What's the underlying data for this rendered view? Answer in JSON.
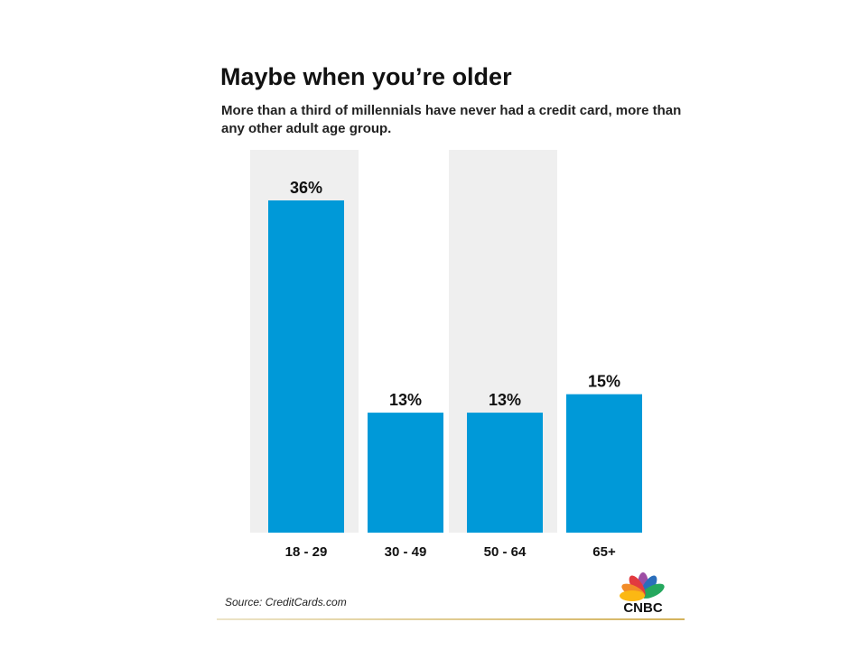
{
  "header": {
    "title": "Maybe when you’re older",
    "subtitle": "More than a third of millennials have never had a credit card, more than any other adult age group."
  },
  "footer": {
    "source": "Source: CreditCards.com",
    "logo_text": "CNBC"
  },
  "colors": {
    "bar": "#0099d8",
    "band": "#efefef",
    "text": "#111111"
  },
  "chart_data": {
    "type": "bar",
    "categories": [
      "18 - 29",
      "30 - 49",
      "50 - 64",
      "65+"
    ],
    "values": [
      36,
      13,
      13,
      15
    ],
    "value_labels": [
      "36%",
      "13%",
      "13%",
      "15%"
    ],
    "unit": "%",
    "title": "Maybe when you’re older",
    "subtitle": "More than a third of millennials have never had a credit card, more than any other adult age group.",
    "xlabel": "",
    "ylabel": "",
    "ylim": [
      0,
      36
    ],
    "grid": false,
    "legend": "none",
    "shaded_categories": [
      "18 - 29",
      "50 - 64"
    ]
  }
}
